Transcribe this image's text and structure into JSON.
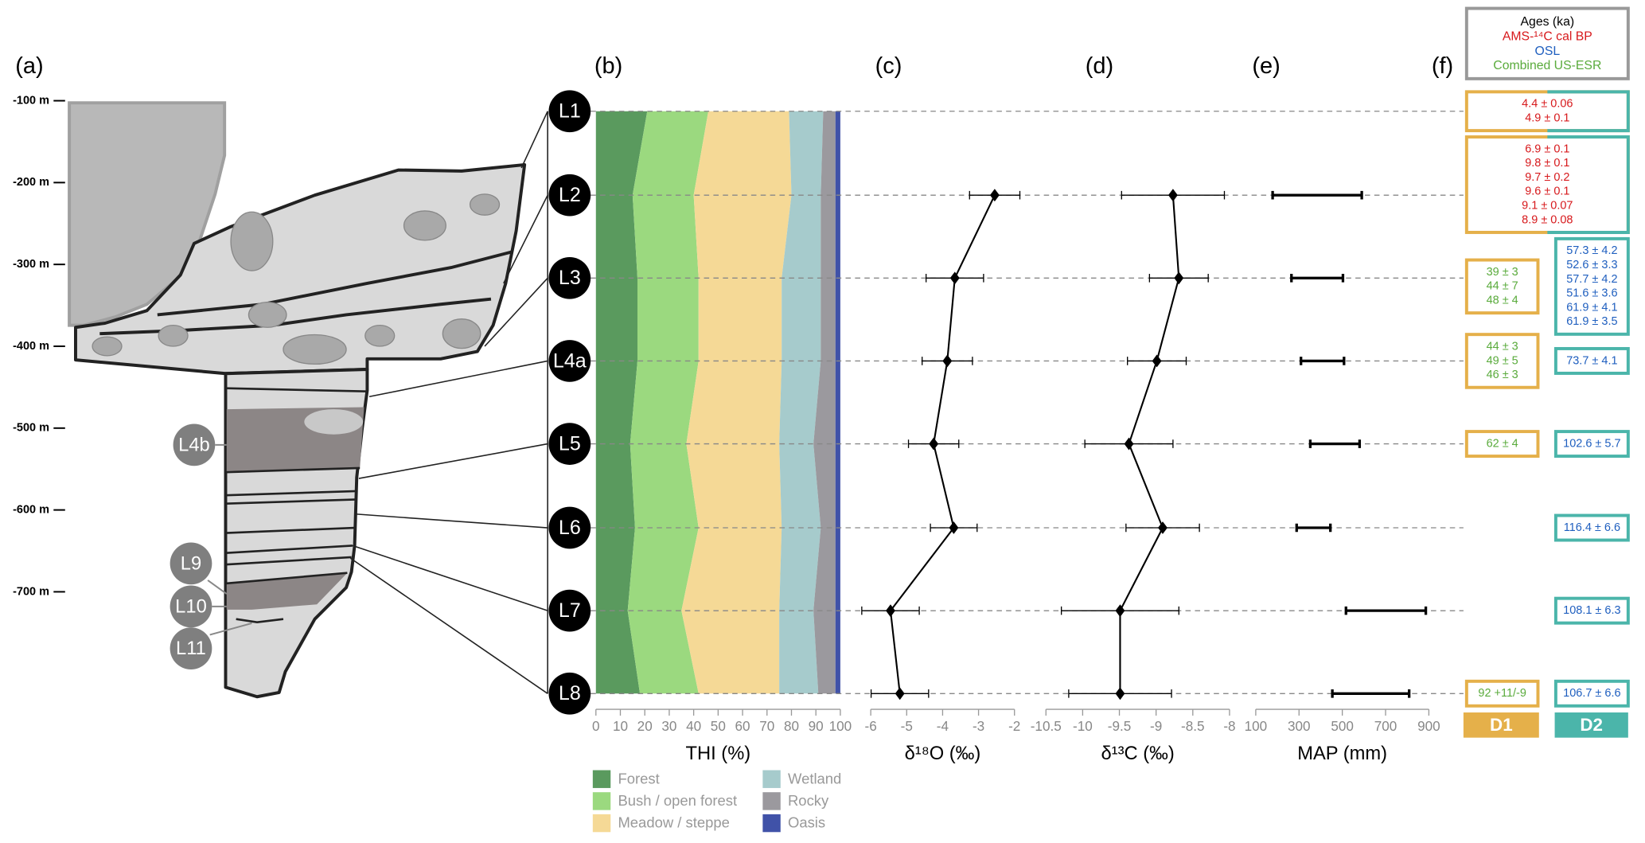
{
  "panel_labels": [
    "(a)",
    "(b)",
    "(c)",
    "(d)",
    "(e)",
    "(f)"
  ],
  "stratigraphy": {
    "labels": [
      "L4b",
      "L9",
      "L10",
      "L11"
    ],
    "ylim": [
      -700,
      -100
    ],
    "yticks": [
      {
        "value": -100,
        "label": "-100 m"
      },
      {
        "value": -200,
        "label": "-200 m"
      },
      {
        "value": -300,
        "label": "-300 m"
      },
      {
        "value": -400,
        "label": "-400 m"
      },
      {
        "value": -500,
        "label": "-500 m"
      },
      {
        "value": -600,
        "label": "-600 m"
      },
      {
        "value": -700,
        "label": "-700 m"
      }
    ]
  },
  "chart_data": [
    {
      "type": "stacked-area",
      "xlabel": "THI (%)",
      "categories": [
        "L1",
        "L2",
        "L3",
        "L4a",
        "L5",
        "L6",
        "L7",
        "L8"
      ],
      "xlim": [
        0,
        100
      ],
      "xticks": [
        0,
        10,
        20,
        30,
        40,
        50,
        60,
        70,
        80,
        90,
        100
      ],
      "series": [
        {
          "name": "Forest",
          "color": "#5a9a5e",
          "values": [
            21,
            15,
            17,
            17,
            14,
            16,
            13,
            18
          ]
        },
        {
          "name": "Bush / open forest",
          "color": "#9bd97f",
          "values": [
            25,
            25,
            25,
            25,
            23,
            26,
            22,
            24
          ]
        },
        {
          "name": "Meadow / steppe",
          "color": "#f5d996",
          "values": [
            33,
            40,
            34,
            34,
            38,
            34,
            40,
            33
          ]
        },
        {
          "name": "Wetland",
          "color": "#a6cbcc",
          "values": [
            14,
            12,
            16,
            16,
            14,
            16,
            14,
            16
          ]
        },
        {
          "name": "Rocky",
          "color": "#9b999e",
          "values": [
            5,
            6,
            6,
            6,
            9,
            6,
            9,
            7
          ]
        },
        {
          "name": "Oasis",
          "color": "#4052a8",
          "values": [
            2,
            2,
            2,
            2,
            2,
            2,
            2,
            2
          ]
        }
      ]
    },
    {
      "type": "profile",
      "xlabel": "δ¹⁸O (‰)",
      "xlim": [
        -6,
        -2
      ],
      "xticks": [
        -6,
        -5,
        -4,
        -3,
        -2
      ],
      "values": [
        null,
        -2.55,
        -3.66,
        -3.87,
        -4.25,
        -3.69,
        -5.45,
        -5.19
      ],
      "errors": [
        null,
        0.7,
        0.8,
        0.7,
        0.7,
        0.65,
        0.8,
        0.8
      ]
    },
    {
      "type": "profile",
      "xlabel": "δ¹³C (‰)",
      "xlim": [
        -10.5,
        -8
      ],
      "xticks": [
        -10.5,
        -10,
        -9.5,
        -9,
        -8.5,
        -8
      ],
      "values": [
        null,
        -8.77,
        -8.69,
        -8.99,
        -9.37,
        -8.91,
        -9.49,
        -9.49
      ],
      "errors": [
        null,
        0.7,
        0.4,
        0.4,
        0.6,
        0.5,
        0.8,
        0.7
      ]
    },
    {
      "type": "range",
      "xlabel": "MAP (mm)",
      "xlim": [
        100,
        900
      ],
      "xticks": [
        100,
        300,
        500,
        700,
        900
      ],
      "low": [
        null,
        178,
        265,
        309,
        352,
        289,
        517,
        454
      ],
      "high": [
        null,
        590,
        503,
        508,
        580,
        445,
        886,
        809
      ]
    }
  ],
  "ages": {
    "title": "Ages (ka)",
    "methods": [
      {
        "name": "AMS-¹⁴C cal BP",
        "color": "#d7191c"
      },
      {
        "name": "OSL",
        "color": "#1f5fbf"
      },
      {
        "name": "Combined US-ESR",
        "color": "#5aab3c"
      }
    ],
    "columns": [
      {
        "name": "D1",
        "color": "#e5b04a"
      },
      {
        "name": "D2",
        "color": "#4bb5aa"
      }
    ],
    "rows": [
      {
        "both": [
          "4.4 ± 0.06",
          "4.9 ± 0.1"
        ]
      },
      {
        "both": [
          "6.9 ± 0.1",
          "9.8 ± 0.1",
          "9.7 ± 0.2",
          "9.6 ± 0.1",
          "9.1 ± 0.07",
          "8.9 ± 0.08"
        ]
      },
      {
        "D1": [
          "39 ± 3",
          "44 ± 7",
          "48 ± 4"
        ],
        "D2": [
          "57.3 ± 4.2",
          "52.6 ± 3.3",
          "57.7 ± 4.2",
          "51.6 ± 3.6",
          "61.9 ± 4.1",
          "61.9 ± 3.5"
        ]
      },
      {
        "D1": [
          "44 ± 3",
          "49 ± 5",
          "46 ± 3"
        ],
        "D2": [
          "73.7 ± 4.1"
        ]
      },
      {
        "D1": [
          "62 ± 4"
        ],
        "D2": [
          "102.6 ± 5.7"
        ]
      },
      {
        "D2": [
          "116.4 ± 6.6"
        ]
      },
      {
        "D2": [
          "108.1 ± 6.3"
        ]
      },
      {
        "D1": [
          "92 +11/-9"
        ],
        "D2": [
          "106.7 ± 6.6"
        ]
      }
    ]
  }
}
